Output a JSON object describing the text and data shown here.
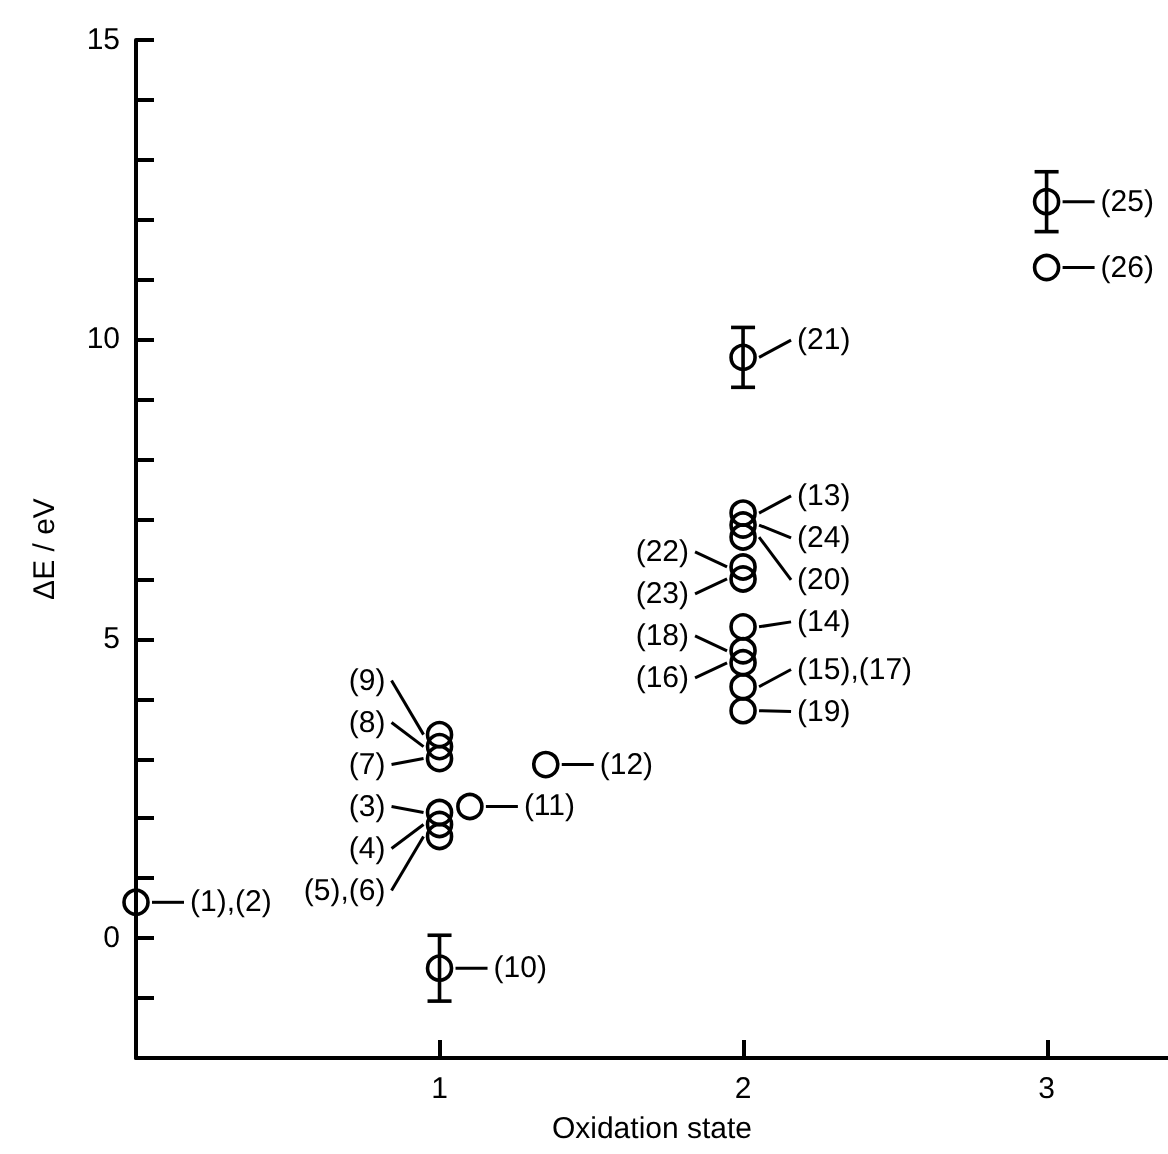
{
  "chart_data": {
    "type": "scatter",
    "xlabel": "Oxidation state",
    "ylabel": "ΔE / eV",
    "x": [
      0,
      1,
      1,
      1,
      1,
      1,
      1,
      1,
      1.1,
      1.35,
      2,
      2,
      2,
      2,
      2,
      2,
      2,
      2,
      2,
      2,
      2,
      3,
      3
    ],
    "values": [
      0.6,
      2.1,
      1.9,
      1.7,
      3.0,
      3.2,
      3.4,
      -0.5,
      2.2,
      2.9,
      7.1,
      5.2,
      4.2,
      4.6,
      4.8,
      3.8,
      6.7,
      9.7,
      6.2,
      6.0,
      6.9,
      12.3,
      11.2
    ],
    "errors": [
      null,
      null,
      null,
      null,
      null,
      null,
      null,
      0.55,
      null,
      null,
      null,
      null,
      null,
      null,
      null,
      null,
      null,
      0.5,
      null,
      null,
      null,
      0.5,
      null
    ],
    "color": "#000000",
    "marker": "circle",
    "xlim": [
      0,
      3.4
    ],
    "xticks": [
      1,
      2,
      3
    ],
    "ylim": [
      -2,
      15
    ],
    "yticks": [
      {
        "value": -1,
        "label": null
      },
      0,
      {
        "value": 1,
        "label": null
      },
      {
        "value": 2,
        "label": null
      },
      {
        "value": 3,
        "label": null
      },
      {
        "value": 4,
        "label": null
      },
      5,
      {
        "value": 6,
        "label": null
      },
      {
        "value": 7,
        "label": null
      },
      {
        "value": 8,
        "label": null
      },
      {
        "value": 9,
        "label": null
      },
      10,
      {
        "value": 11,
        "label": null
      },
      {
        "value": 12,
        "label": null
      },
      {
        "value": 13,
        "label": null
      },
      {
        "value": 14,
        "label": null
      },
      15
    ],
    "grid": false,
    "annotations": [
      {
        "text": "(1),(2)",
        "x": 0,
        "y": 0.6
      },
      {
        "text": "(3)",
        "x": 1,
        "y": 2.1
      },
      {
        "text": "(4)",
        "x": 1,
        "y": 1.9
      },
      {
        "text": "(5),(6)",
        "x": 1,
        "y": 1.7
      },
      {
        "text": "(7)",
        "x": 1,
        "y": 3.0
      },
      {
        "text": "(8)",
        "x": 1,
        "y": 3.2
      },
      {
        "text": "(9)",
        "x": 1,
        "y": 3.4
      },
      {
        "text": "(10)",
        "x": 1,
        "y": -0.5
      },
      {
        "text": "(11)",
        "x": 1.1,
        "y": 2.2
      },
      {
        "text": "(12)",
        "x": 1.35,
        "y": 2.9
      },
      {
        "text": "(13)",
        "x": 2,
        "y": 7.1
      },
      {
        "text": "(14)",
        "x": 2,
        "y": 5.2
      },
      {
        "text": "(15),(17)",
        "x": 2,
        "y": 4.2
      },
      {
        "text": "(16)",
        "x": 2,
        "y": 4.6
      },
      {
        "text": "(18)",
        "x": 2,
        "y": 4.8
      },
      {
        "text": "(19)",
        "x": 2,
        "y": 3.8
      },
      {
        "text": "(20)",
        "x": 2,
        "y": 6.7
      },
      {
        "text": "(21)",
        "x": 2,
        "y": 9.7
      },
      {
        "text": "(22)",
        "x": 2,
        "y": 6.2
      },
      {
        "text": "(23)",
        "x": 2,
        "y": 6.0
      },
      {
        "text": "(24)",
        "x": 2,
        "y": 6.9
      },
      {
        "text": "(25)",
        "x": 3,
        "y": 12.3
      },
      {
        "text": "(26)",
        "x": 3,
        "y": 11.2
      }
    ]
  }
}
